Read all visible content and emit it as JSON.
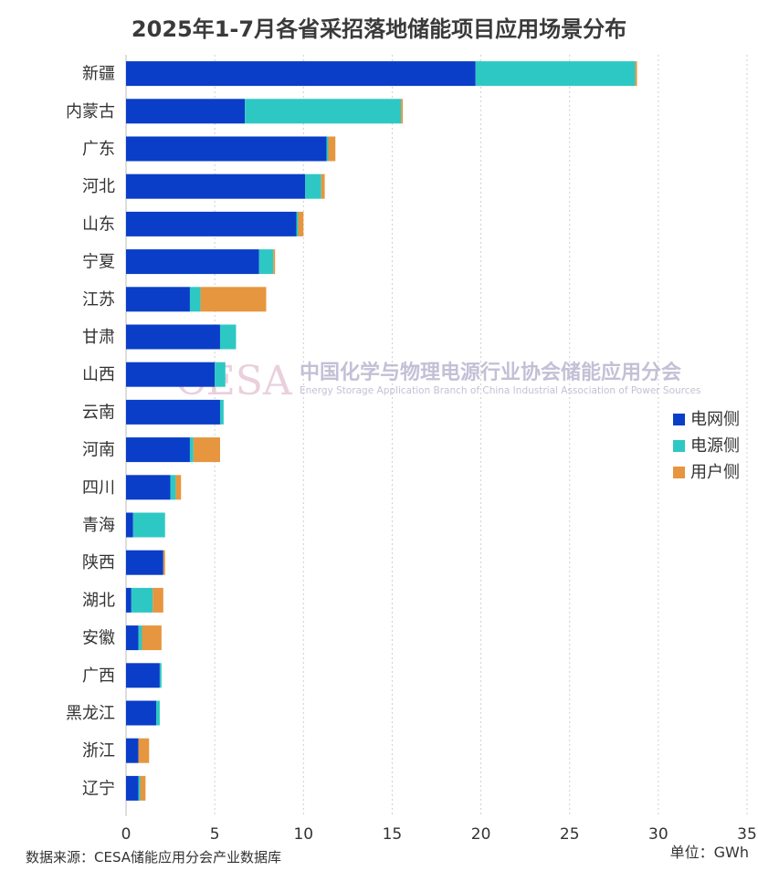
{
  "chart_data": {
    "type": "bar",
    "orientation": "horizontal",
    "stacked": true,
    "title": "2025年1-7月各省采招落地储能项目应用场景分布",
    "categories": [
      "新疆",
      "内蒙古",
      "广东",
      "河北",
      "山东",
      "宁夏",
      "江苏",
      "甘肃",
      "山西",
      "云南",
      "河南",
      "四川",
      "青海",
      "陕西",
      "湖北",
      "安徽",
      "广西",
      "黑龙江",
      "浙江",
      "辽宁"
    ],
    "series": [
      {
        "name": "电网侧",
        "color": "#0a3ec8",
        "values": [
          19.7,
          6.7,
          11.3,
          10.1,
          9.6,
          7.5,
          3.6,
          5.3,
          5.0,
          5.3,
          3.6,
          2.5,
          0.4,
          2.1,
          0.3,
          0.7,
          1.9,
          1.7,
          0.7,
          0.7
        ]
      },
      {
        "name": "电源侧",
        "color": "#2ec8c4",
        "values": [
          9.0,
          8.8,
          0.1,
          0.9,
          0.1,
          0.8,
          0.6,
          0.9,
          0.6,
          0.2,
          0.2,
          0.3,
          1.8,
          0.0,
          1.2,
          0.2,
          0.1,
          0.2,
          0.0,
          0.1
        ]
      },
      {
        "name": "用户侧",
        "color": "#e6963f",
        "values": [
          0.1,
          0.1,
          0.4,
          0.2,
          0.3,
          0.1,
          3.7,
          0.0,
          0.0,
          0.0,
          1.5,
          0.3,
          0.0,
          0.1,
          0.6,
          1.1,
          0.0,
          0.0,
          0.6,
          0.3
        ]
      }
    ],
    "xlim": [
      0,
      35
    ],
    "xticks": [
      0,
      5,
      10,
      15,
      20,
      25,
      30,
      35
    ],
    "grid": "vertical dotted",
    "legend_position": "right",
    "unit": "单位：GWh"
  },
  "watermark": {
    "logo": "CESA",
    "name": "中国化学与物理电源行业协会储能应用分会",
    "name_en": "Energy Storage Application Branch of China Industrial Association of Power Sources"
  },
  "source": "数据来源：CESA储能应用分会产业数据库"
}
